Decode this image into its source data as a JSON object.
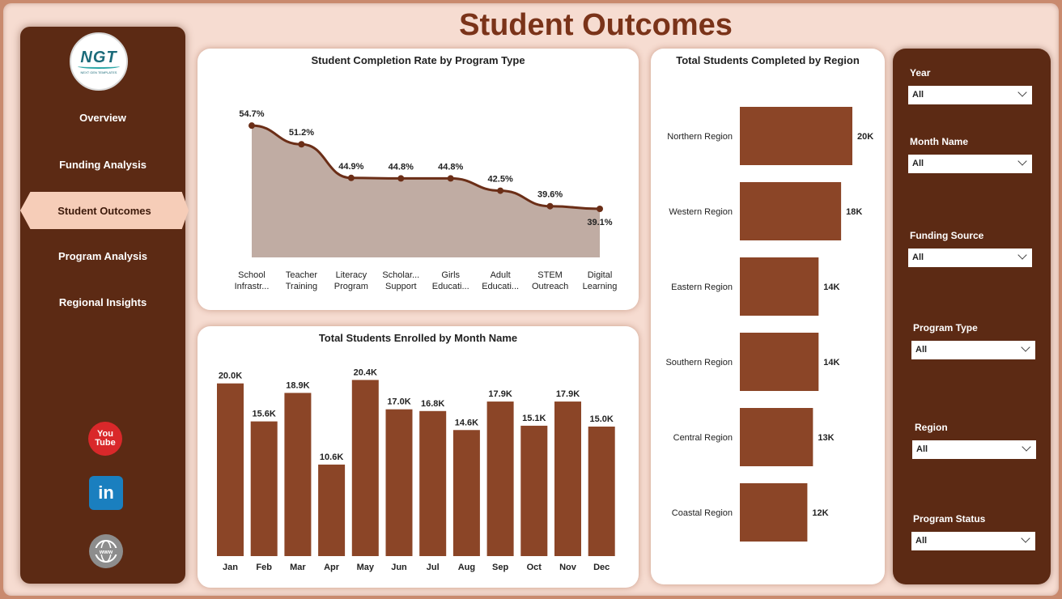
{
  "page": {
    "title": "Student Outcomes"
  },
  "logo": {
    "text": "NGT",
    "subtext": "NEXT GEN TEMPLATES"
  },
  "nav": {
    "items": [
      {
        "label": "Overview"
      },
      {
        "label": "Funding Analysis"
      },
      {
        "label": "Student Outcomes"
      },
      {
        "label": "Program Analysis"
      },
      {
        "label": "Regional Insights"
      }
    ],
    "active": "Student Outcomes"
  },
  "social": {
    "youtube_top": "You",
    "youtube_bottom": "Tube",
    "linkedin": "in",
    "web": "www"
  },
  "colors": {
    "bar": "#8b4527",
    "line": "#6b2e17",
    "area": "#c0aca3",
    "sidebar": "#5c2a14",
    "accent": "#f6cdb8"
  },
  "chart_data": [
    {
      "type": "area",
      "title": "Student Completion Rate by Program Type",
      "categories": [
        [
          "School",
          "Infrastr..."
        ],
        [
          "Teacher",
          "Training"
        ],
        [
          "Literacy",
          "Program"
        ],
        [
          "Scholar...",
          "Support"
        ],
        [
          "Girls",
          "Educati..."
        ],
        [
          "Adult",
          "Educati..."
        ],
        [
          "STEM",
          "Outreach"
        ],
        [
          "Digital",
          "Learning"
        ]
      ],
      "values": [
        54.7,
        51.2,
        44.9,
        44.8,
        44.8,
        42.5,
        39.6,
        39.1
      ],
      "data_labels": [
        "54.7%",
        "51.2%",
        "44.9%",
        "44.8%",
        "44.8%",
        "42.5%",
        "39.6%",
        "39.1%"
      ],
      "ylim": [
        30,
        57
      ]
    },
    {
      "type": "bar",
      "title": "Total Students Enrolled by Month Name",
      "categories": [
        "Jan",
        "Feb",
        "Mar",
        "Apr",
        "May",
        "Jun",
        "Jul",
        "Aug",
        "Sep",
        "Oct",
        "Nov",
        "Dec"
      ],
      "values": [
        20.0,
        15.6,
        18.9,
        10.6,
        20.4,
        17.0,
        16.8,
        14.6,
        17.9,
        15.1,
        17.9,
        15.0
      ],
      "data_labels": [
        "20.0K",
        "15.6K",
        "18.9K",
        "10.6K",
        "20.4K",
        "17.0K",
        "16.8K",
        "14.6K",
        "17.9K",
        "15.1K",
        "17.9K",
        "15.0K"
      ],
      "ylim": [
        0,
        21
      ]
    },
    {
      "type": "bar",
      "orientation": "horizontal",
      "title": "Total Students Completed by Region",
      "categories": [
        "Northern Region",
        "Western Region",
        "Eastern Region",
        "Southern Region",
        "Central Region",
        "Coastal Region"
      ],
      "values": [
        20,
        18,
        14,
        14,
        13,
        12
      ],
      "data_labels": [
        "20K",
        "18K",
        "14K",
        "14K",
        "13K",
        "12K"
      ],
      "xlim": [
        0,
        20
      ]
    }
  ],
  "filters": [
    {
      "label": "Year",
      "value": "All"
    },
    {
      "label": "Month Name",
      "value": "All"
    },
    {
      "label": "Funding Source",
      "value": "All"
    },
    {
      "label": "Program Type",
      "value": "All"
    },
    {
      "label": "Region",
      "value": "All"
    },
    {
      "label": "Program Status",
      "value": "All"
    }
  ]
}
